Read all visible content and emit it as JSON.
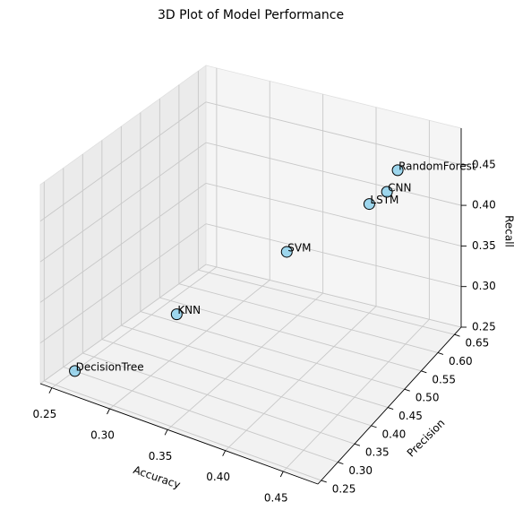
{
  "chart_data": {
    "type": "scatter3d",
    "title": "3D Plot of Model Performance",
    "xlabel": "Accuracy",
    "ylabel": "Precision",
    "zlabel": "Recall",
    "labels": [
      "DecisionTree",
      "KNN",
      "SVM",
      "LSTM",
      "CNN",
      "RandomForest"
    ],
    "x": [
      0.25,
      0.3,
      0.35,
      0.41,
      0.42,
      0.43
    ],
    "y": [
      0.3,
      0.42,
      0.57,
      0.62,
      0.64,
      0.64
    ],
    "z": [
      0.25,
      0.3,
      0.34,
      0.4,
      0.41,
      0.44
    ],
    "color": "#87ceeb",
    "xlim": [
      0.24,
      0.48
    ],
    "ylim": [
      0.24,
      0.67
    ],
    "zlim": [
      0.25,
      0.495
    ],
    "xticks": [
      0.25,
      {
        "value": 0.3,
        "label": "0.30"
      },
      0.35,
      {
        "value": 0.4,
        "label": "0.40"
      },
      0.45
    ],
    "yticks": [
      0.25,
      {
        "value": 0.3,
        "label": "0.30"
      },
      0.35,
      {
        "value": 0.4,
        "label": "0.40"
      },
      0.45,
      {
        "value": 0.5,
        "label": "0.50"
      },
      0.55,
      {
        "value": 0.6,
        "label": "0.60"
      },
      0.65
    ],
    "zticks": [
      0.25,
      {
        "value": 0.3,
        "label": "0.30"
      },
      0.35,
      {
        "value": 0.4,
        "label": "0.40"
      },
      0.45
    ],
    "grid": true
  }
}
